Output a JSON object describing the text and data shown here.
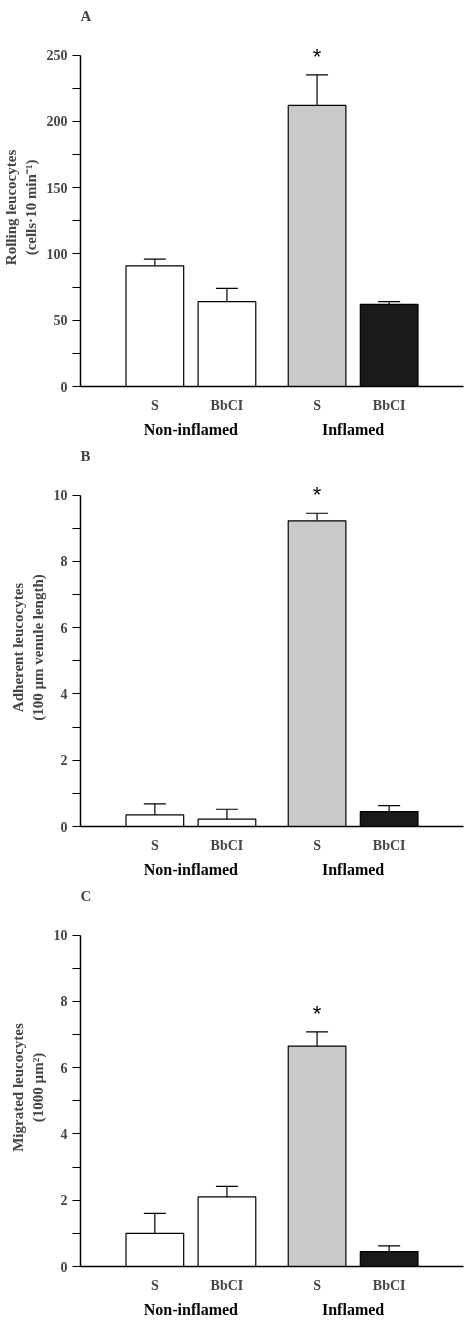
{
  "chart_data": [
    {
      "type": "bar",
      "title": "A",
      "ylabel": "Rolling leucocytes\n(cells·10 min⁻¹)",
      "categories": [
        "S",
        "BbCI",
        "S",
        "BbCI"
      ],
      "values": [
        91,
        64,
        212,
        62
      ],
      "errors": [
        [
          91,
          96
        ],
        [
          64,
          74
        ],
        [
          212,
          235
        ],
        [
          62,
          64
        ]
      ],
      "colors": [
        "#ffffff",
        "#ffffff",
        "#c8c9cb",
        "#1a1a1a"
      ],
      "ylim": [
        0,
        250
      ],
      "yticks": [
        0,
        {
          "value": 25,
          "label": null
        },
        50,
        {
          "value": 75,
          "label": null
        },
        100,
        {
          "value": 125,
          "label": null
        },
        150,
        {
          "value": 175,
          "label": null
        },
        200,
        {
          "value": 225,
          "label": null
        },
        250
      ],
      "grid": false,
      "value_labels": [
        null,
        null,
        "*",
        null
      ],
      "annotations": [
        "Non-inflamed",
        "Inflamed"
      ]
    },
    {
      "type": "bar",
      "title": "B",
      "ylabel": "Adherent leucocytes\n(100 µm venule length)",
      "categories": [
        "S",
        "BbCI",
        "S",
        "BbCI"
      ],
      "values": [
        0.35,
        0.22,
        9.22,
        0.45
      ],
      "errors": [
        [
          0.35,
          0.68
        ],
        [
          0.22,
          0.52
        ],
        [
          9.22,
          9.45
        ],
        [
          0.45,
          0.63
        ]
      ],
      "colors": [
        "#ffffff",
        "#ffffff",
        "#c8c9cb",
        "#1a1a1a"
      ],
      "ylim": [
        0,
        10
      ],
      "yticks": [
        0,
        {
          "value": 1,
          "label": null
        },
        2,
        {
          "value": 3,
          "label": null
        },
        4,
        {
          "value": 5,
          "label": null
        },
        6,
        {
          "value": 7,
          "label": null
        },
        8,
        {
          "value": 9,
          "label": null
        },
        10
      ],
      "grid": false,
      "value_labels": [
        null,
        null,
        "*",
        null
      ],
      "annotations": [
        "Non-inflamed",
        "Inflamed"
      ]
    },
    {
      "type": "bar",
      "title": "C",
      "ylabel": "Migrated leucocytes\n(1000 µm²)",
      "categories": [
        "S",
        "BbCI",
        "S",
        "BbCI"
      ],
      "values": [
        1.0,
        2.1,
        6.65,
        0.45
      ],
      "errors": [
        [
          1.0,
          1.6
        ],
        [
          2.1,
          2.42
        ],
        [
          6.65,
          7.08
        ],
        [
          0.45,
          0.62
        ]
      ],
      "colors": [
        "#ffffff",
        "#ffffff",
        "#c8c9cb",
        "#1a1a1a"
      ],
      "ylim": [
        0,
        10
      ],
      "yticks": [
        0,
        {
          "value": 1,
          "label": null
        },
        2,
        {
          "value": 3,
          "label": null
        },
        4,
        {
          "value": 5,
          "label": null
        },
        6,
        {
          "value": 7,
          "label": null
        },
        8,
        {
          "value": 9,
          "label": null
        },
        10
      ],
      "grid": false,
      "value_labels": [
        null,
        null,
        "*",
        null
      ],
      "annotations": [
        "Non-inflamed",
        "Inflamed"
      ]
    }
  ]
}
